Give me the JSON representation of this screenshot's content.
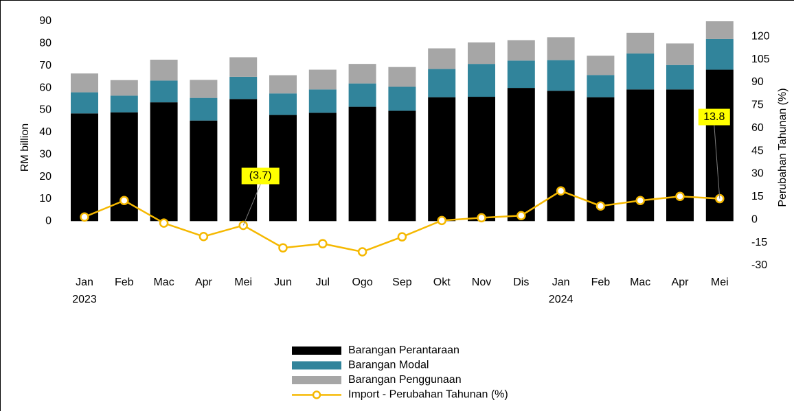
{
  "chart_data": {
    "type": "bar_line",
    "categories": [
      "Jan",
      "Feb",
      "Mac",
      "Apr",
      "Mei",
      "Jun",
      "Jul",
      "Ogo",
      "Sep",
      "Okt",
      "Nov",
      "Dis",
      "Jan",
      "Feb",
      "Mac",
      "Apr",
      "Mei"
    ],
    "year_labels": [
      "2023",
      null,
      null,
      null,
      null,
      null,
      null,
      null,
      null,
      null,
      null,
      null,
      "2024",
      null,
      null,
      null,
      null
    ],
    "ylabel": "RM billion",
    "y2label": "Perubahan Tahunan (%)",
    "ylim": [
      -20,
      90
    ],
    "yticks": [
      0,
      10,
      20,
      30,
      40,
      50,
      60,
      70,
      80,
      90
    ],
    "y2lim": [
      -30,
      130
    ],
    "y2ticks": [
      -30,
      -15,
      0,
      15,
      30,
      45,
      60,
      75,
      90,
      105,
      120
    ],
    "series": [
      {
        "name": "Barangan Perantaraan",
        "color": "#000000",
        "stack": true,
        "values": [
          48.5,
          49,
          53.5,
          45.3,
          55,
          47.8,
          48.8,
          51.5,
          49.7,
          55.8,
          56,
          60,
          58.7,
          55.8,
          59.3,
          59.3,
          68.2
        ]
      },
      {
        "name": "Barangan Modal",
        "color": "#31849b",
        "stack": true,
        "values": [
          9.5,
          7.5,
          9.8,
          10.2,
          10,
          9.7,
          10.5,
          10.5,
          10.8,
          12.7,
          14.8,
          12.3,
          13.8,
          10,
          16.2,
          11,
          13.8
        ]
      },
      {
        "name": "Barangan Penggunaan",
        "color": "#a6a6a6",
        "stack": true,
        "values": [
          8.5,
          7,
          9.4,
          8.1,
          8.8,
          8.2,
          8.9,
          8.8,
          8.9,
          9.3,
          9.7,
          9.2,
          10.3,
          8.7,
          9.3,
          9.7,
          8
        ]
      },
      {
        "name": "Import - Perubahan Tahunan (%)",
        "color": "#f5b800",
        "type": "line",
        "axis": "y2",
        "values": [
          1.8,
          12.6,
          -2.2,
          -11,
          -3.7,
          -18.4,
          -15.7,
          -21,
          -11.2,
          -0.5,
          1.3,
          2.7,
          18.9,
          9,
          12.6,
          15.3,
          13.8
        ],
        "value_labels": [
          null,
          null,
          null,
          null,
          "(3.7)",
          null,
          null,
          null,
          null,
          null,
          null,
          null,
          null,
          null,
          null,
          null,
          "13.8"
        ]
      }
    ]
  }
}
